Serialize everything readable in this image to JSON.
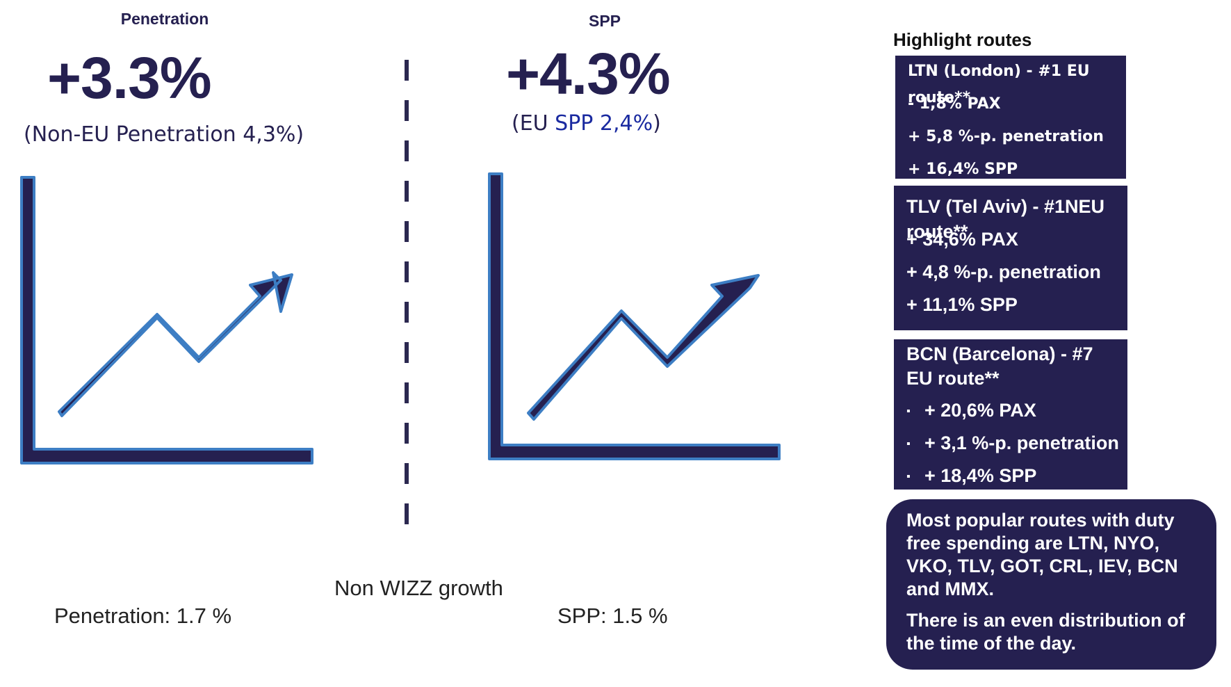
{
  "left_panel": {
    "label": "Penetration",
    "value": "+3.3%",
    "subtext": "(Non-EU Penetration 4,3%)",
    "icon": "trend-up-chart-icon"
  },
  "right_panel": {
    "label": "SPP",
    "value": "+4.3%",
    "subtext_prefix": "(EU ",
    "subtext_highlight": "SPP 2,4%",
    "subtext_suffix": ")",
    "icon": "trend-up-chart-icon"
  },
  "non_wizz": {
    "title": "Non WIZZ growth",
    "penetration": "Penetration: 1.7 %",
    "spp": "SPP: 1.5 %"
  },
  "highlights": {
    "title": "Highlight routes",
    "routes": [
      {
        "title": "LTN (London) - #1 EU route**",
        "items": [
          "- 1,8% PAX",
          "+ 5,8 %-p. penetration",
          "+ 16,4% SPP"
        ]
      },
      {
        "title": "TLV (Tel Aviv) - #1NEU route**",
        "items": [
          "+ 34,6% PAX",
          "+ 4,8 %-p. penetration",
          "+ 11,1% SPP"
        ]
      },
      {
        "title": "BCN (Barcelona) - #7 EU route**",
        "bullet": "▪",
        "items": [
          "+ 20,6% PAX",
          "+ 3,1 %-p. penetration",
          "+ 18,4% SPP"
        ]
      }
    ],
    "popular": {
      "text1": "Most popular routes with duty free spending  are LTN, NYO, VKO, TLV, GOT, CRL, IEV, BCN and MMX.",
      "text2": "There is an even distribution of the time of the day."
    }
  },
  "colors": {
    "navy": "#252050",
    "icon_outline": "#3d7ec4",
    "blue_text": "#1a2aa0"
  }
}
